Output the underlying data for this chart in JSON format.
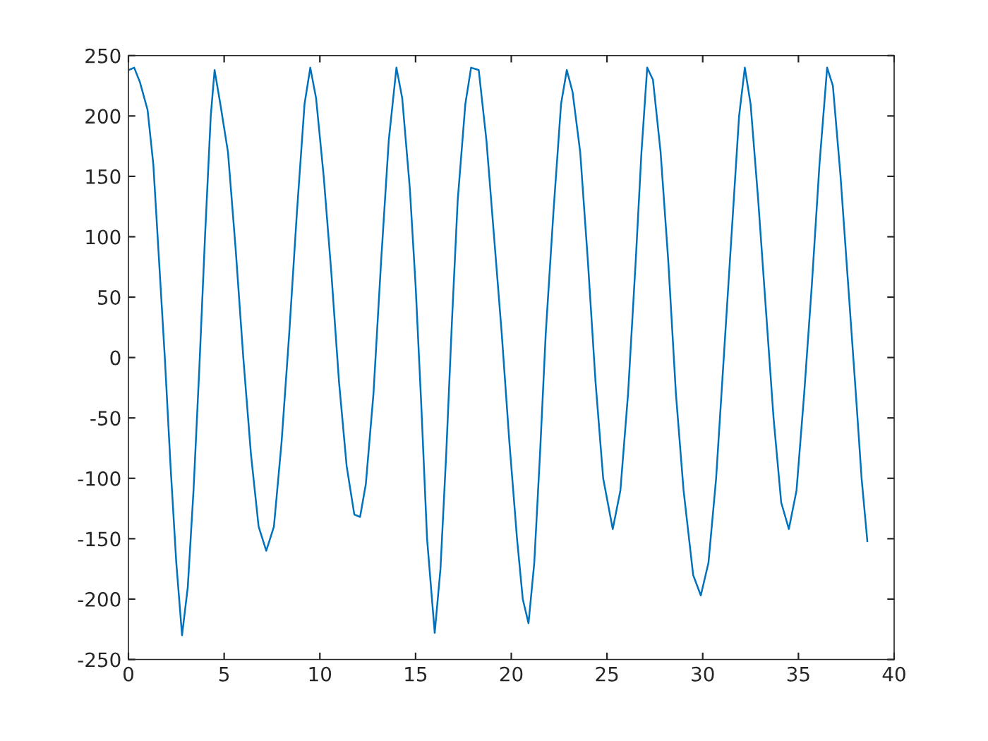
{
  "chart_data": {
    "type": "line",
    "xlim": [
      0,
      40
    ],
    "ylim": [
      -250,
      250
    ],
    "xticks": [
      0,
      5,
      10,
      15,
      20,
      25,
      30,
      35,
      40
    ],
    "yticks": [
      -250,
      -200,
      -150,
      -100,
      -50,
      0,
      50,
      100,
      150,
      200,
      250
    ],
    "grid": false,
    "legend": false,
    "marker": "none",
    "line_style": "solid",
    "series": [
      {
        "color": "#0072bd",
        "x": [
          0,
          0.3,
          0.6,
          1.0,
          1.3,
          1.6,
          1.9,
          2.2,
          2.5,
          2.8,
          3.1,
          3.4,
          3.7,
          4.0,
          4.3,
          4.5,
          4.8,
          5.2,
          5.6,
          6.0,
          6.4,
          6.8,
          7.2,
          7.6,
          8.0,
          8.4,
          8.8,
          9.2,
          9.5,
          9.8,
          10.2,
          10.6,
          11.0,
          11.4,
          11.8,
          12.1,
          12.4,
          12.8,
          13.2,
          13.6,
          14.0,
          14.3,
          14.7,
          15.0,
          15.3,
          15.6,
          16.0,
          16.3,
          16.6,
          16.9,
          17.2,
          17.6,
          17.9,
          18.3,
          18.7,
          19.1,
          19.5,
          19.9,
          20.3,
          20.6,
          20.9,
          21.2,
          21.5,
          21.8,
          22.2,
          22.6,
          22.9,
          23.2,
          23.6,
          24.0,
          24.4,
          24.8,
          25.3,
          25.7,
          26.1,
          26.5,
          26.8,
          27.1,
          27.4,
          27.8,
          28.2,
          28.6,
          29.0,
          29.5,
          29.9,
          30.3,
          30.7,
          31.1,
          31.5,
          31.9,
          32.2,
          32.5,
          32.9,
          33.3,
          33.7,
          34.1,
          34.5,
          34.9,
          35.3,
          35.7,
          36.1,
          36.5,
          36.8,
          37.2,
          37.6,
          38.0,
          38.3,
          38.6
        ],
        "values": [
          238,
          240,
          228,
          205,
          160,
          80,
          0,
          -90,
          -170,
          -230,
          -190,
          -110,
          -10,
          100,
          200,
          238,
          210,
          170,
          90,
          0,
          -80,
          -140,
          -160,
          -140,
          -70,
          20,
          120,
          210,
          240,
          215,
          150,
          70,
          -20,
          -90,
          -130,
          -132,
          -105,
          -30,
          80,
          180,
          240,
          215,
          140,
          60,
          -40,
          -150,
          -228,
          -175,
          -80,
          30,
          130,
          210,
          240,
          238,
          180,
          100,
          20,
          -70,
          -150,
          -200,
          -220,
          -170,
          -80,
          20,
          120,
          210,
          238,
          220,
          170,
          80,
          -20,
          -100,
          -142,
          -110,
          -30,
          80,
          170,
          240,
          230,
          170,
          80,
          -30,
          -110,
          -180,
          -197,
          -170,
          -100,
          0,
          100,
          200,
          240,
          210,
          130,
          40,
          -50,
          -120,
          -142,
          -110,
          -30,
          60,
          160,
          240,
          225,
          150,
          60,
          -30,
          -100,
          -152
        ]
      }
    ]
  }
}
